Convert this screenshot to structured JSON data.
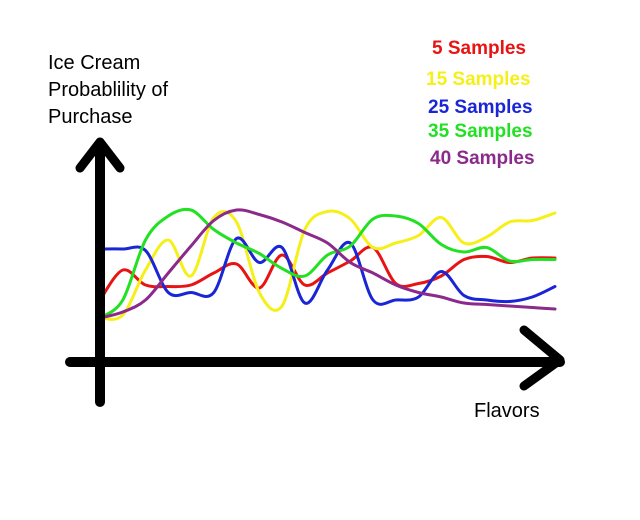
{
  "chart_data": {
    "type": "line",
    "title": "",
    "ylabel_lines": [
      "Ice Cream",
      "Probablility of",
      "Purchase"
    ],
    "xlabel": "Flavors",
    "x": [
      0,
      1,
      2,
      3,
      4,
      5,
      6,
      7,
      8,
      9,
      10,
      11,
      12,
      13,
      14,
      15,
      16,
      17,
      18,
      19,
      20
    ],
    "ylim": [
      0,
      10
    ],
    "grid": false,
    "legend_position": "top-right",
    "series": [
      {
        "name": "5 Samples",
        "color": "#e81414",
        "values": [
          2.0,
          4.0,
          3.0,
          2.9,
          3.0,
          3.8,
          4.4,
          2.8,
          5.0,
          3.0,
          3.8,
          4.6,
          5.5,
          3.1,
          3.1,
          3.6,
          4.7,
          4.9,
          4.5,
          4.8,
          4.8
        ]
      },
      {
        "name": "15 Samples",
        "color": "#f5ef1a",
        "values": [
          0.8,
          1.0,
          4.0,
          6.0,
          3.6,
          7.5,
          7.2,
          2.5,
          1.6,
          6.7,
          7.9,
          7.4,
          5.5,
          5.8,
          6.3,
          7.5,
          5.8,
          6.2,
          7.2,
          7.3,
          7.8
        ]
      },
      {
        "name": "25 Samples",
        "color": "#1a25d6",
        "values": [
          5.4,
          5.4,
          5.3,
          2.5,
          2.5,
          2.5,
          6.1,
          4.5,
          5.5,
          1.8,
          4.0,
          5.8,
          2.0,
          2.0,
          2.2,
          3.9,
          2.3,
          2.0,
          1.9,
          2.2,
          2.9
        ]
      },
      {
        "name": "35 Samples",
        "color": "#22e022",
        "values": [
          0.8,
          2.0,
          6.0,
          7.6,
          8.0,
          6.7,
          5.8,
          5.1,
          4.1,
          3.6,
          5.0,
          5.6,
          7.4,
          7.6,
          7.1,
          5.7,
          5.2,
          5.5,
          4.6,
          4.7,
          4.7
        ]
      },
      {
        "name": "40 Samples",
        "color": "#8b2a8b",
        "values": [
          0.8,
          1.2,
          2.0,
          3.8,
          5.6,
          7.3,
          8.0,
          7.7,
          7.2,
          6.5,
          5.8,
          4.5,
          3.8,
          3.0,
          2.5,
          2.2,
          1.8,
          1.7,
          1.6,
          1.5,
          1.4
        ]
      }
    ]
  }
}
